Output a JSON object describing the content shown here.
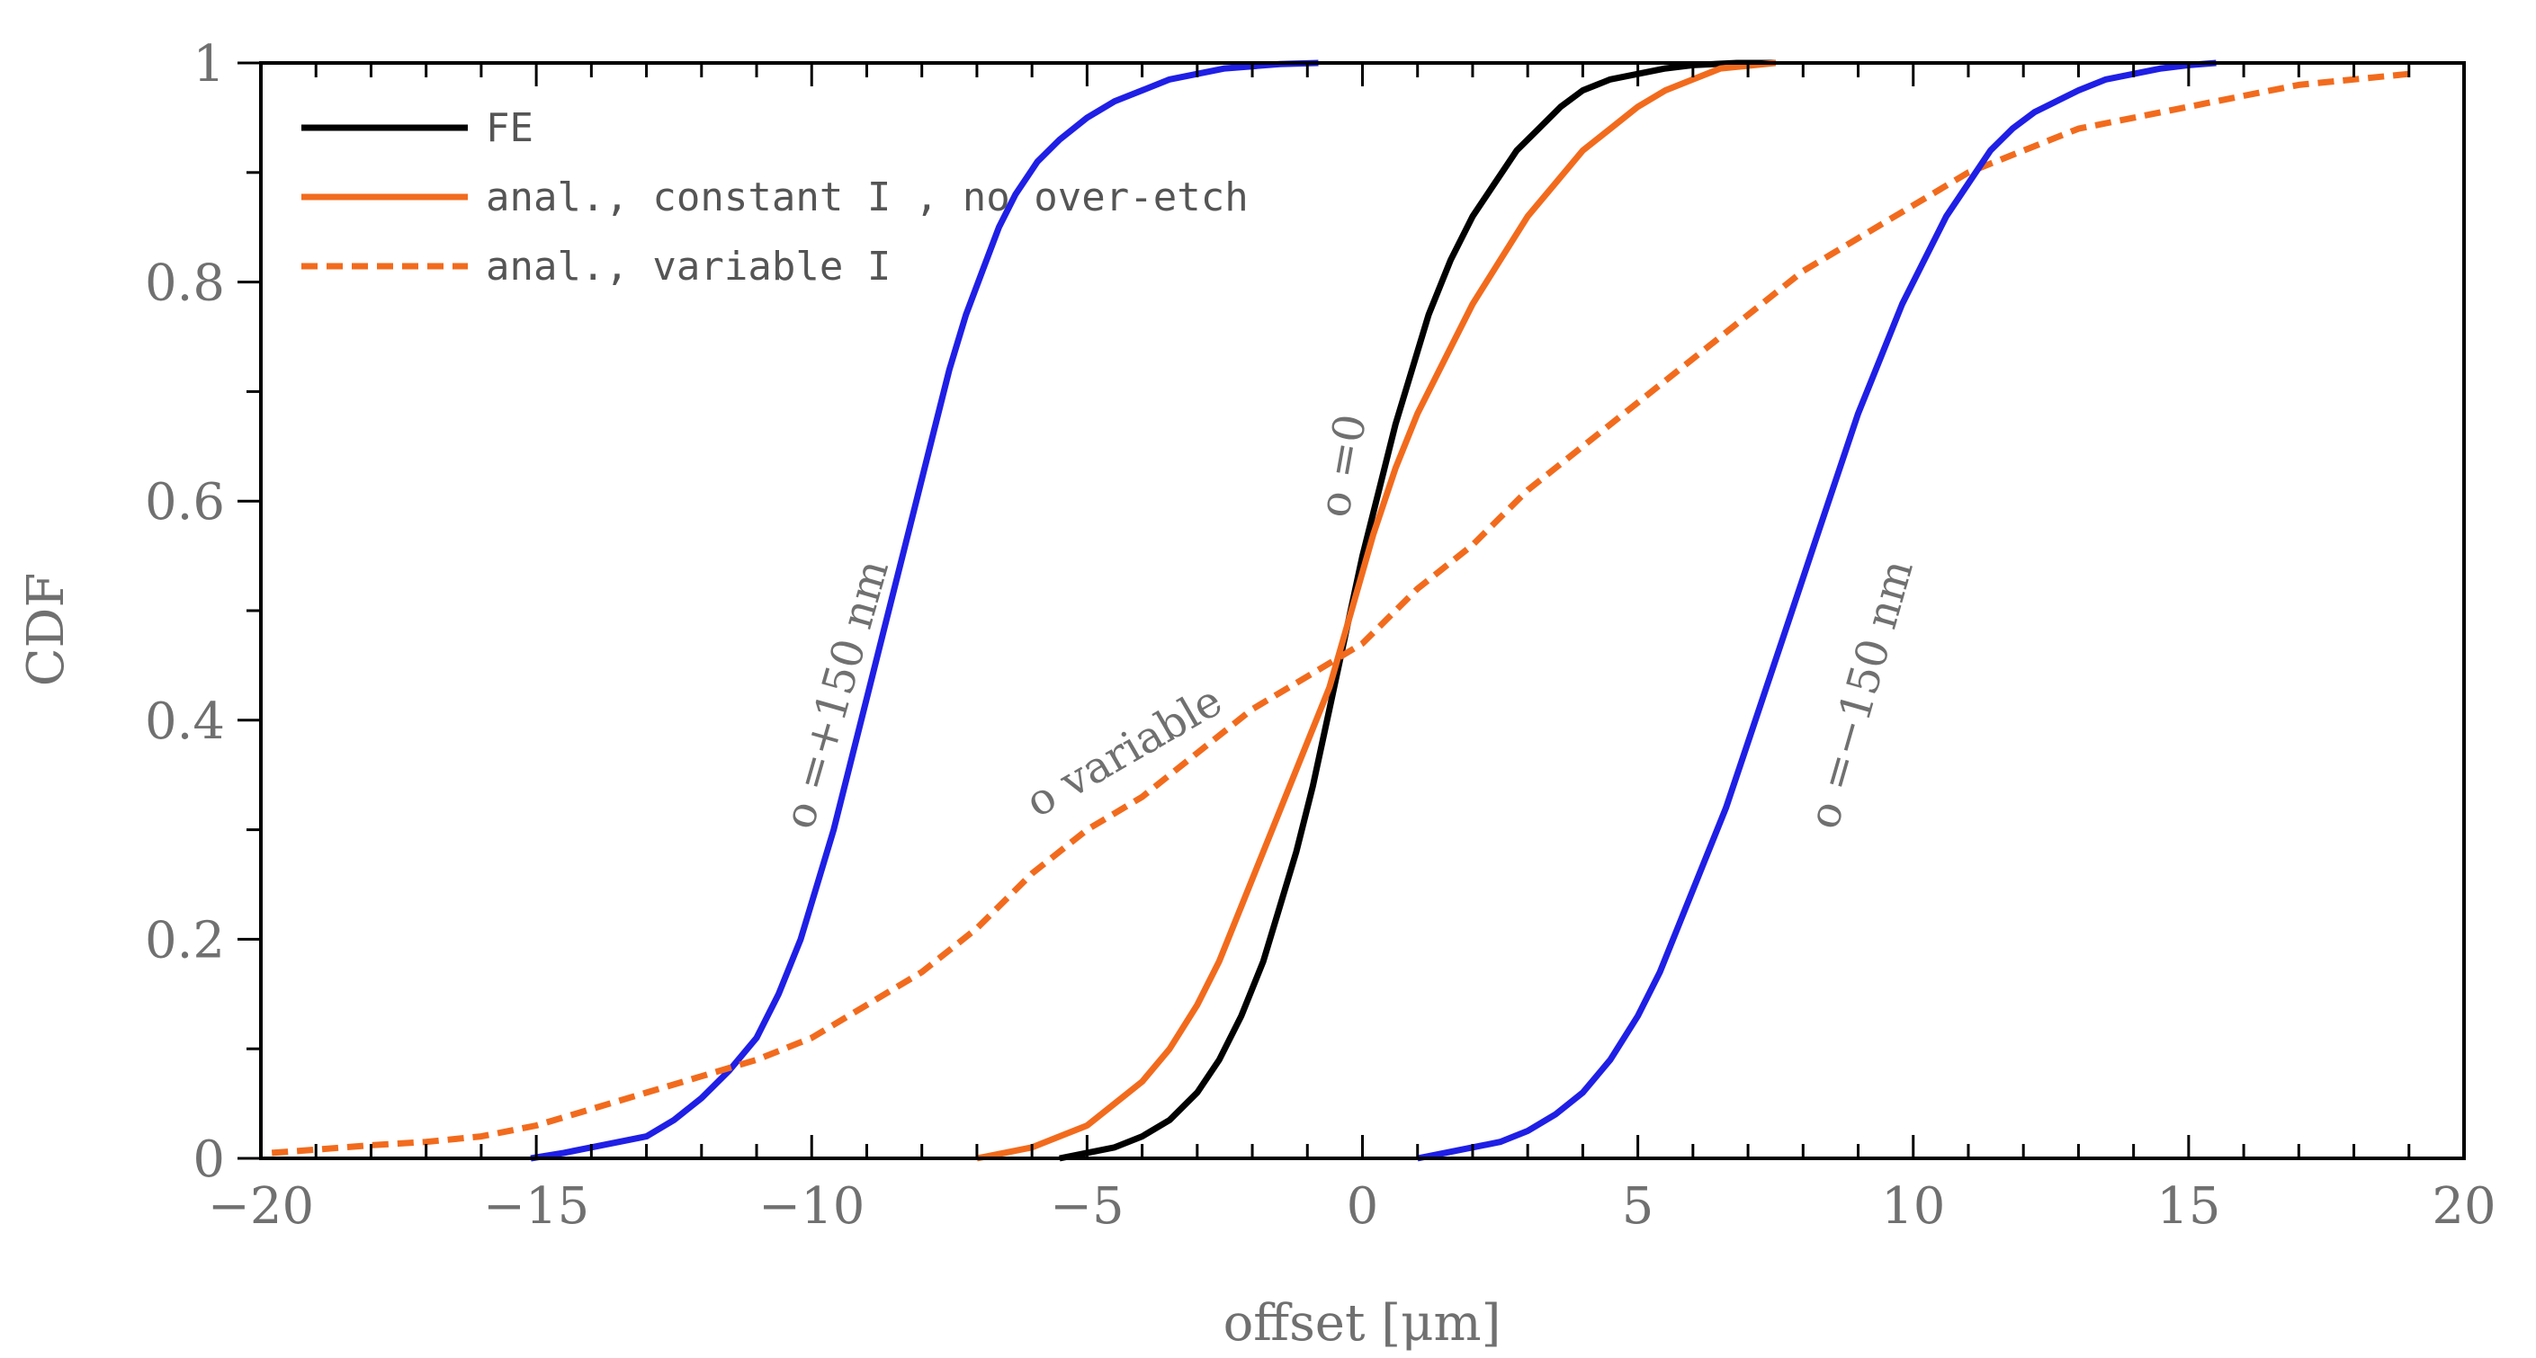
{
  "chart_data": {
    "type": "line",
    "title": "",
    "xlabel": "offset [μm]",
    "ylabel": "CDF",
    "xlim": [
      -20,
      20
    ],
    "ylim": [
      0,
      1
    ],
    "xticks": [
      -20,
      -15,
      -10,
      -5,
      0,
      5,
      10,
      15,
      20
    ],
    "xtick_labels": [
      "−20",
      "−15",
      "−10",
      "−5",
      "0",
      "5",
      "10",
      "15",
      "20"
    ],
    "yticks": [
      0,
      0.2,
      0.4,
      0.6,
      0.8,
      1
    ],
    "ytick_labels": [
      "0",
      "0.2",
      "0.4",
      "0.6",
      "0.8",
      "1"
    ],
    "grid": false,
    "legend_position": "top-left",
    "series": [
      {
        "name": "o=+150 nm",
        "legend": false,
        "color": "#1f1fe6",
        "dash": "solid",
        "x": [
          -15.1,
          -14.5,
          -14.0,
          -13.5,
          -13.0,
          -12.5,
          -12.0,
          -11.5,
          -11.0,
          -10.6,
          -10.2,
          -9.9,
          -9.6,
          -9.3,
          -9.0,
          -8.7,
          -8.4,
          -8.1,
          -7.8,
          -7.5,
          -7.2,
          -6.9,
          -6.6,
          -6.3,
          -5.9,
          -5.5,
          -5.0,
          -4.5,
          -4.0,
          -3.5,
          -3.0,
          -2.5,
          -2.0,
          -1.5,
          -0.8
        ],
        "y": [
          0.0,
          0.005,
          0.01,
          0.015,
          0.02,
          0.035,
          0.055,
          0.08,
          0.11,
          0.15,
          0.2,
          0.25,
          0.3,
          0.36,
          0.42,
          0.48,
          0.54,
          0.6,
          0.66,
          0.72,
          0.77,
          0.81,
          0.85,
          0.88,
          0.91,
          0.93,
          0.95,
          0.965,
          0.975,
          0.985,
          0.99,
          0.995,
          0.997,
          0.999,
          1.0
        ]
      },
      {
        "name": "FE",
        "legend": true,
        "color": "#000000",
        "dash": "solid",
        "x": [
          -5.5,
          -5.0,
          -4.5,
          -4.0,
          -3.5,
          -3.0,
          -2.6,
          -2.2,
          -1.8,
          -1.5,
          -1.2,
          -0.9,
          -0.6,
          -0.3,
          0.0,
          0.3,
          0.6,
          0.9,
          1.2,
          1.6,
          2.0,
          2.4,
          2.8,
          3.2,
          3.6,
          4.0,
          4.5,
          5.0,
          5.5,
          6.0,
          6.8,
          7.5
        ],
        "y": [
          0.0,
          0.005,
          0.01,
          0.02,
          0.035,
          0.06,
          0.09,
          0.13,
          0.18,
          0.23,
          0.28,
          0.34,
          0.41,
          0.48,
          0.55,
          0.61,
          0.67,
          0.72,
          0.77,
          0.82,
          0.86,
          0.89,
          0.92,
          0.94,
          0.96,
          0.975,
          0.985,
          0.99,
          0.995,
          0.998,
          1.0,
          1.0
        ]
      },
      {
        "name": "anal., constant I , no over-etch",
        "legend": true,
        "color": "#f26b1d",
        "dash": "solid",
        "x": [
          -7.0,
          -6.5,
          -6.0,
          -5.5,
          -5.0,
          -4.5,
          -4.0,
          -3.5,
          -3.0,
          -2.6,
          -2.2,
          -1.8,
          -1.4,
          -1.0,
          -0.6,
          -0.2,
          0.2,
          0.6,
          1.0,
          1.5,
          2.0,
          2.5,
          3.0,
          3.5,
          4.0,
          4.5,
          5.0,
          5.5,
          6.0,
          6.5,
          7.5
        ],
        "y": [
          0.0,
          0.005,
          0.01,
          0.02,
          0.03,
          0.05,
          0.07,
          0.1,
          0.14,
          0.18,
          0.23,
          0.28,
          0.33,
          0.38,
          0.43,
          0.5,
          0.57,
          0.63,
          0.68,
          0.73,
          0.78,
          0.82,
          0.86,
          0.89,
          0.92,
          0.94,
          0.96,
          0.975,
          0.985,
          0.995,
          1.0
        ]
      },
      {
        "name": "anal., variable I",
        "legend": true,
        "color": "#f26b1d",
        "dash": "dashed",
        "x": [
          -19.8,
          -19.0,
          -18.0,
          -17.0,
          -16.0,
          -15.0,
          -14.0,
          -13.0,
          -12.0,
          -11.0,
          -10.0,
          -9.0,
          -8.0,
          -7.0,
          -6.0,
          -5.0,
          -4.0,
          -3.0,
          -2.0,
          -1.0,
          0.0,
          1.0,
          2.0,
          3.0,
          4.0,
          5.0,
          6.0,
          7.0,
          8.0,
          9.0,
          10.0,
          11.0,
          12.0,
          13.0,
          14.0,
          15.0,
          16.0,
          17.0,
          18.0,
          19.0
        ],
        "y": [
          0.005,
          0.008,
          0.012,
          0.015,
          0.02,
          0.03,
          0.045,
          0.06,
          0.075,
          0.09,
          0.11,
          0.14,
          0.17,
          0.21,
          0.26,
          0.3,
          0.33,
          0.37,
          0.41,
          0.44,
          0.47,
          0.52,
          0.56,
          0.61,
          0.65,
          0.69,
          0.73,
          0.77,
          0.81,
          0.84,
          0.87,
          0.9,
          0.92,
          0.94,
          0.95,
          0.96,
          0.97,
          0.98,
          0.985,
          0.99
        ]
      },
      {
        "name": "o=−150 nm",
        "legend": false,
        "color": "#1f1fe6",
        "dash": "solid",
        "x": [
          1.0,
          1.5,
          2.0,
          2.5,
          3.0,
          3.5,
          4.0,
          4.5,
          5.0,
          5.4,
          5.8,
          6.2,
          6.6,
          7.0,
          7.4,
          7.8,
          8.2,
          8.6,
          9.0,
          9.4,
          9.8,
          10.2,
          10.6,
          11.0,
          11.4,
          11.8,
          12.2,
          12.6,
          13.0,
          13.5,
          14.0,
          14.5,
          15.0,
          15.5
        ],
        "y": [
          0.0,
          0.005,
          0.01,
          0.015,
          0.025,
          0.04,
          0.06,
          0.09,
          0.13,
          0.17,
          0.22,
          0.27,
          0.32,
          0.38,
          0.44,
          0.5,
          0.56,
          0.62,
          0.68,
          0.73,
          0.78,
          0.82,
          0.86,
          0.89,
          0.92,
          0.94,
          0.955,
          0.965,
          0.975,
          0.985,
          0.99,
          0.995,
          0.998,
          1.0
        ]
      }
    ],
    "annotations": [
      {
        "text": "o =+150  nm",
        "x": -9.3,
        "y": 0.42,
        "angle": -74
      },
      {
        "text": "o variable",
        "x": -4.2,
        "y": 0.36,
        "angle": -30
      },
      {
        "text": "o =0",
        "x": -0.1,
        "y": 0.63,
        "angle": -80
      },
      {
        "text": "o =−150  nm",
        "x": 9.3,
        "y": 0.42,
        "angle": -74
      }
    ]
  }
}
